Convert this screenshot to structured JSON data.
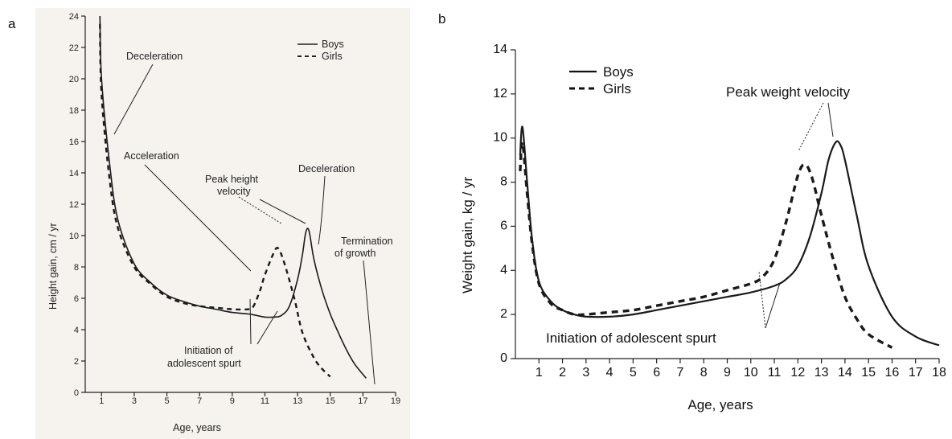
{
  "panels": {
    "a": {
      "letter": "a"
    },
    "b": {
      "letter": "b"
    }
  },
  "chart_data": [
    {
      "type": "line",
      "panel": "a",
      "xlabel": "Age, years",
      "ylabel": "Height gain, cm / yr",
      "xlim": [
        0,
        19
      ],
      "ylim": [
        0,
        24
      ],
      "xticks": [
        1,
        3,
        5,
        7,
        9,
        11,
        13,
        15,
        17,
        19
      ],
      "yticks": [
        0,
        2,
        4,
        6,
        8,
        10,
        12,
        14,
        16,
        18,
        20,
        22,
        24
      ],
      "legend": {
        "position": "top-right",
        "entries": [
          "Boys",
          "Girls"
        ]
      },
      "series": [
        {
          "name": "Boys",
          "style": "solid",
          "x": [
            0.9,
            1.0,
            1.5,
            2,
            3,
            4,
            5,
            6,
            7,
            8,
            9,
            10,
            10.5,
            11,
            11.5,
            12,
            12.5,
            13,
            13.3,
            13.5,
            13.7,
            14,
            14.5,
            15,
            15.5,
            16,
            16.5,
            17.2
          ],
          "y": [
            24,
            20,
            14.5,
            11,
            8.2,
            7.0,
            6.2,
            5.8,
            5.5,
            5.3,
            5.1,
            5.0,
            4.9,
            4.8,
            4.8,
            4.9,
            5.5,
            7.2,
            8.8,
            10.2,
            10.3,
            8.5,
            6.5,
            5.0,
            3.8,
            2.7,
            1.8,
            0.9
          ]
        },
        {
          "name": "Girls",
          "style": "dashed",
          "x": [
            0.9,
            1.0,
            1.5,
            2,
            3,
            4,
            5,
            6,
            7,
            8,
            9,
            10,
            10.3,
            10.7,
            11,
            11.5,
            11.8,
            12.2,
            12.8,
            13.3,
            14,
            14.5,
            15
          ],
          "y": [
            23.5,
            19,
            13.5,
            10.5,
            8.0,
            6.9,
            6.1,
            5.7,
            5.5,
            5.4,
            5.3,
            5.3,
            5.5,
            6.5,
            7.5,
            8.8,
            9.2,
            8.2,
            6.0,
            3.8,
            2.2,
            1.5,
            1.0
          ]
        }
      ],
      "annotations": [
        "Deceleration",
        "Acceleration",
        "Peak height",
        "velocity",
        "Deceleration",
        "Termination",
        "of growth",
        "Initiation of",
        "adolescent spurt"
      ]
    },
    {
      "type": "line",
      "panel": "b",
      "xlabel": "Age, years",
      "ylabel": "Weight gain, kg / yr",
      "xlim": [
        0,
        18
      ],
      "ylim": [
        0,
        14
      ],
      "xticks": [
        1,
        2,
        3,
        4,
        5,
        6,
        7,
        8,
        9,
        10,
        11,
        12,
        13,
        14,
        15,
        16,
        17,
        18
      ],
      "yticks": [
        0,
        2,
        4,
        6,
        8,
        10,
        12,
        14
      ],
      "legend": {
        "position": "top-left",
        "entries": [
          "Boys",
          "Girls"
        ]
      },
      "series": [
        {
          "name": "Boys",
          "style": "solid",
          "x": [
            0.2,
            0.3,
            0.5,
            0.7,
            1.0,
            1.5,
            2,
            2.5,
            3,
            4,
            5,
            6,
            7,
            8,
            9,
            10,
            11,
            11.5,
            12,
            12.5,
            13,
            13.3,
            13.6,
            13.8,
            14,
            14.5,
            15,
            16,
            17,
            18
          ],
          "y": [
            9.2,
            10.5,
            8.0,
            5.5,
            3.5,
            2.6,
            2.2,
            2.0,
            1.9,
            1.9,
            2.0,
            2.2,
            2.4,
            2.6,
            2.8,
            3.0,
            3.3,
            3.6,
            4.2,
            5.5,
            7.5,
            9.0,
            9.8,
            9.7,
            9.0,
            6.5,
            4.2,
            1.9,
            1.0,
            0.6
          ]
        },
        {
          "name": "Girls",
          "style": "dashed",
          "x": [
            0.2,
            0.3,
            0.5,
            0.7,
            1.0,
            1.5,
            2,
            2.5,
            3,
            4,
            5,
            6,
            7,
            8,
            9,
            10,
            10.5,
            11,
            11.5,
            12,
            12.3,
            12.6,
            13,
            13.5,
            14,
            14.5,
            15,
            16
          ],
          "y": [
            8.5,
            9.8,
            7.5,
            5.3,
            3.4,
            2.5,
            2.2,
            2.0,
            2.0,
            2.1,
            2.2,
            2.4,
            2.6,
            2.8,
            3.1,
            3.4,
            3.7,
            4.5,
            6.2,
            8.3,
            8.8,
            8.2,
            6.5,
            4.5,
            2.8,
            1.8,
            1.1,
            0.5
          ]
        }
      ],
      "annotations": [
        "Peak weight velocity",
        "Initiation of adolescent spurt"
      ]
    }
  ]
}
